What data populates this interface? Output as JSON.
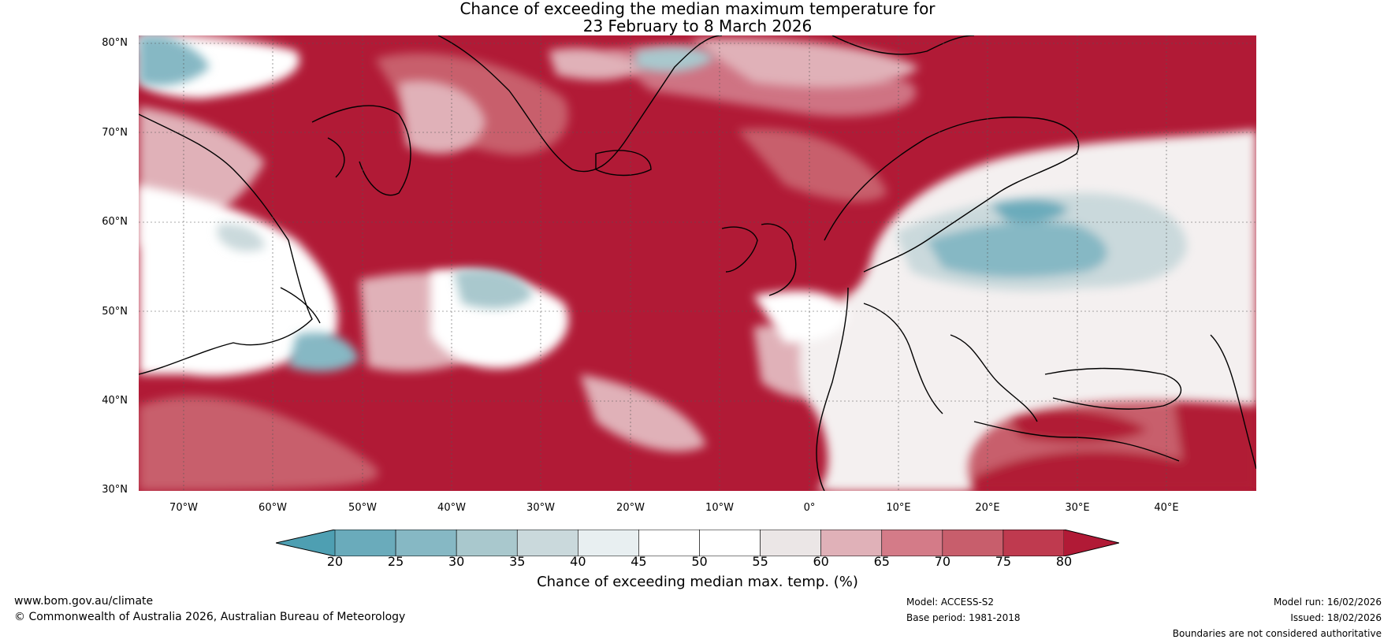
{
  "title": {
    "line1": "Chance of exceeding the median maximum temperature for",
    "line2": "23 February to 8 March 2026"
  },
  "map": {
    "latitude_labels": [
      "80°N",
      "70°N",
      "60°N",
      "50°N",
      "40°N",
      "30°N"
    ],
    "longitude_labels": [
      "70°W",
      "60°W",
      "50°W",
      "40°W",
      "30°W",
      "20°W",
      "10°W",
      "0°",
      "10°E",
      "20°E",
      "30°E",
      "40°E"
    ],
    "extent": {
      "lon": [
        -75,
        50
      ],
      "lat": [
        30,
        81
      ]
    }
  },
  "legend": {
    "label": "Chance of exceeding median max. temp. (%)",
    "ticks": [
      "20",
      "25",
      "30",
      "35",
      "40",
      "45",
      "50",
      "55",
      "60",
      "65",
      "70",
      "75",
      "80"
    ],
    "colors": [
      "#4e9fb2",
      "#6aabbb",
      "#86b8c4",
      "#a9c8cd",
      "#cad9dc",
      "#e8eff1",
      "#ffffff",
      "#ffffff",
      "#ebe6e6",
      "#e0b1b8",
      "#d47b88",
      "#c85e6c",
      "#bf3a4f",
      "#b11a36"
    ]
  },
  "footer": {
    "url": "www.bom.gov.au/climate",
    "copyright": "© Commonwealth of Australia 2026, Australian Bureau of Meteorology",
    "model": "Model: ACCESS-S2",
    "base_period": "Base period: 1981-2018",
    "model_run": "Model run: 16/02/2026",
    "issued": "Issued: 18/02/2026",
    "disclaimer": "Boundaries are not considered authoritative"
  }
}
